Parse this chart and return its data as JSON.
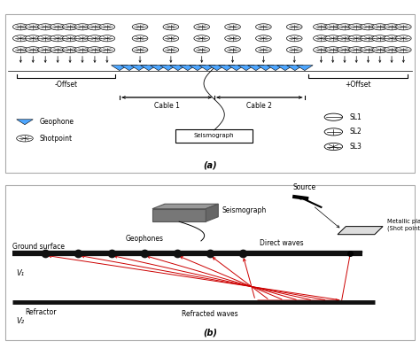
{
  "fig_width": 4.74,
  "fig_height": 3.94,
  "dpi": 100,
  "bg_color": "#ffffff",
  "panel_a": {
    "geophone_color": "#4da6ff",
    "label_offset_minus": "-Offset",
    "label_offset_plus": "+Offset",
    "label_cable1": "Cable 1",
    "label_cable2": "Cable 2",
    "label_seismograph": "Seismograph",
    "legend_geophone": "Geophone",
    "legend_shotpoint": "Shotpoint",
    "legend_sl1": "SL1",
    "legend_sl2": "SL2",
    "legend_sl3": "SL3",
    "label_a": "(a)"
  },
  "panel_b": {
    "ground_color": "#111111",
    "refractor_color": "#111111",
    "wave_color": "#cc0000",
    "geophone_color": "#111111",
    "label_ground": "Ground surface",
    "label_geophones": "Geophones",
    "label_v1": "V₁",
    "label_v2": "V₂",
    "label_refractor": "Refractor",
    "label_direct": "Direct waves",
    "label_refracted": "Refracted waves",
    "label_seismograph": "Seismograph",
    "label_source": "Source",
    "label_metallic": "Metallic plate\n(Shot point)",
    "label_b": "(b)"
  }
}
